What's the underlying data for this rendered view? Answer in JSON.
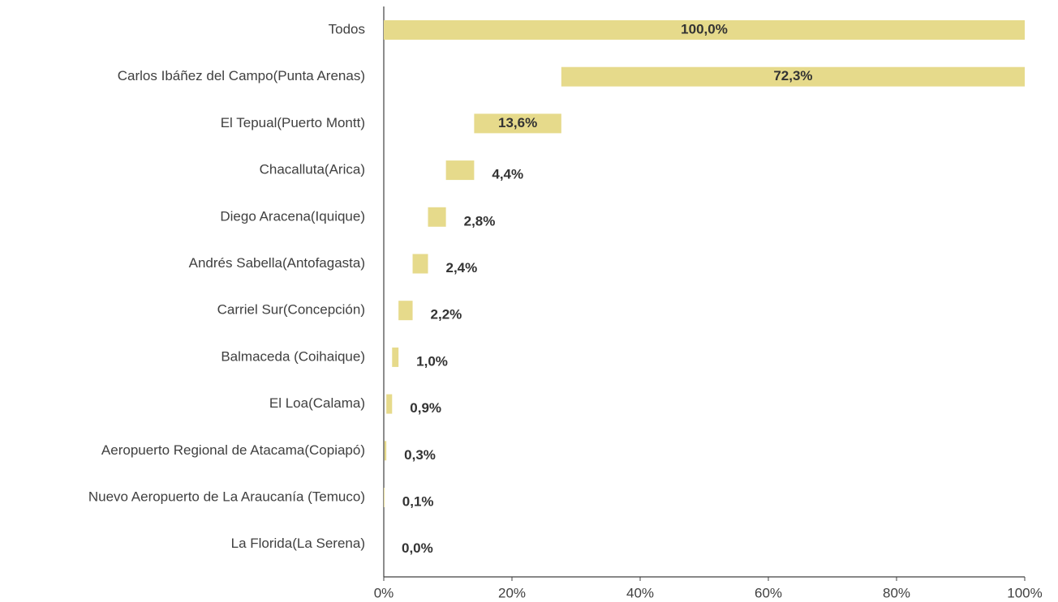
{
  "chart_data": {
    "type": "waterfall",
    "categories": [
      "Todos",
      "Carlos Ibáñez del Campo(Punta Arenas)",
      "El Tepual(Puerto Montt)",
      "Chacalluta(Arica)",
      "Diego Aracena(Iquique)",
      "Andrés Sabella(Antofagasta)",
      "Carriel Sur(Concepción)",
      "Balmaceda (Coihaique)",
      "El Loa(Calama)",
      "Aeropuerto Regional de Atacama(Copiapó)",
      "Nuevo Aeropuerto de La Araucanía (Temuco)",
      "La Florida(La Serena)"
    ],
    "values": [
      100,
      72.3,
      13.6,
      4.4,
      2.8,
      2.4,
      2.2,
      1.0,
      0.9,
      0.3,
      0.1,
      0.0
    ],
    "value_labels": [
      "100,0%",
      "72,3%",
      "13,6%",
      "4,4%",
      "2,8%",
      "2,4%",
      "2,2%",
      "1,0%",
      "0,9%",
      "0,3%",
      "0,1%",
      "0,0%"
    ],
    "color": "#e6da8b",
    "xlim": [
      0,
      100
    ],
    "xticks": [
      {
        "value": 0,
        "label": "0%"
      },
      {
        "value": 20,
        "label": "20%"
      },
      {
        "value": 40,
        "label": "40%"
      },
      {
        "value": 60,
        "label": "60%"
      },
      {
        "value": 80,
        "label": "80%"
      },
      {
        "value": 100,
        "label": "100%"
      }
    ]
  }
}
